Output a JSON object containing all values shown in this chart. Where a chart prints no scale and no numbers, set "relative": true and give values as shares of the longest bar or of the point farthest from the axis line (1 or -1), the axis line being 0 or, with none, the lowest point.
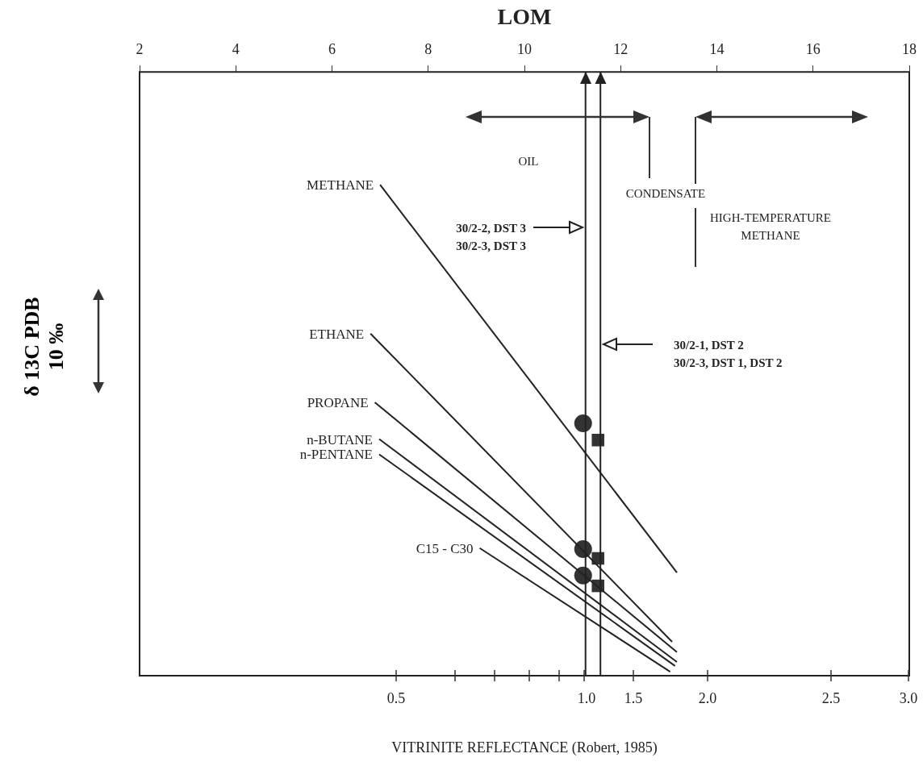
{
  "chart_data": {
    "type": "line",
    "xlabel": "LOM",
    "x2label": "VITRINITE REFLECTANCE (Robert, 1985)",
    "ylabel": "δ 13C PDB",
    "relative": true,
    "xlim": [
      2,
      18
    ],
    "xticks": [
      2,
      4,
      6,
      8,
      10,
      12,
      14,
      16,
      18
    ],
    "grid": false,
    "legend": false,
    "line_style": "solid",
    "marker": "none",
    "series": [
      {
        "name": "METHANE",
        "color": "#222222",
        "x": [
          7.0,
          13.17
        ],
        "values": [
          1,
          0.21
        ]
      },
      {
        "name": "ETHANE",
        "color": "#222222",
        "x": [
          6.8,
          13.07
        ],
        "values": [
          0.697,
          0.069
        ]
      },
      {
        "name": "PROPANE",
        "color": "#222222",
        "x": [
          6.89,
          13.17
        ],
        "values": [
          0.557,
          0.048
        ]
      },
      {
        "name": "n-BUTANE",
        "color": "#222222",
        "x": [
          6.98,
          13.17
        ],
        "values": [
          0.482,
          0.028
        ]
      },
      {
        "name": "n-PENTANE",
        "color": "#222222",
        "x": [
          6.98,
          13.13
        ],
        "values": [
          0.451,
          0.02
        ]
      },
      {
        "name": "C15 - C30",
        "color": "#222222",
        "x": [
          9.07,
          13.03
        ],
        "values": [
          0.26,
          0.008
        ]
      },
      {
        "type": "scatter",
        "marker": "circle",
        "color": "#333333",
        "x": [
          11.22,
          11.22,
          11.22
        ],
        "values": [
          0.514,
          0.258,
          0.204
        ]
      },
      {
        "type": "scatter",
        "marker": "square",
        "color": "#333333",
        "x": [
          11.53,
          11.53,
          11.53
        ],
        "values": [
          0.48,
          0.239,
          0.183
        ]
      }
    ],
    "ref_lines": [
      {
        "axis": "x",
        "value": 11.27
      },
      {
        "axis": "x",
        "value": 11.58
      }
    ],
    "annotations": [
      "10 ‰",
      "OIL",
      "CONDENSATE",
      "HIGH-TEMPERATURE\nMETHANE",
      "0.5",
      "1.0",
      "1.5",
      "2.0",
      "2.5",
      "3.0",
      "30/2-2, DST 3\n30/2-3, DST 3",
      "30/2-1, DST 2\n30/2-3, DST 1, DST 2"
    ]
  }
}
